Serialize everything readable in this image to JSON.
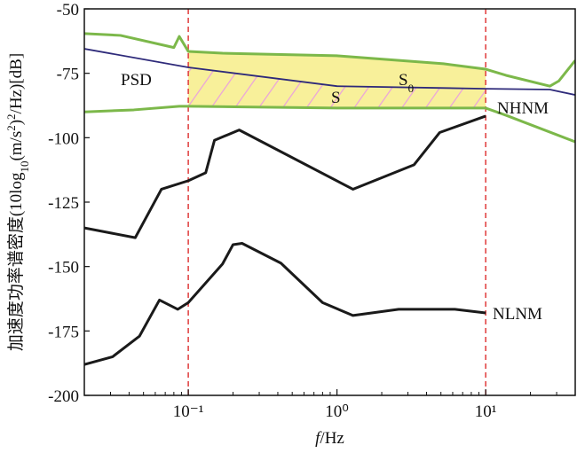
{
  "chart_data": {
    "type": "line",
    "ylabel_parts": [
      {
        "text": "加速度功率谱密度(10log"
      },
      {
        "text": "10",
        "shift": "sub"
      },
      {
        "text": "(m/s"
      },
      {
        "text": "2",
        "shift": "sup"
      },
      {
        "text": ")"
      },
      {
        "text": "2",
        "shift": "sup"
      },
      {
        "text": "/Hz)[dB]"
      }
    ],
    "xlabel_parts": [
      {
        "text": "f",
        "italic": true
      },
      {
        "text": "/Hz"
      }
    ],
    "xlim": [
      0.02,
      40
    ],
    "log_x": true,
    "xticks": [
      {
        "value": 0.1,
        "label": "10⁻¹"
      },
      {
        "value": 1,
        "label": "10⁰"
      },
      {
        "value": 10,
        "label": "10¹"
      }
    ],
    "ylim": [
      -200,
      -50
    ],
    "yticks": [
      -50,
      -75,
      -100,
      -125,
      -150,
      -175,
      -200
    ],
    "vlines": [
      0.1,
      10
    ],
    "vline_color": "#e03a3a",
    "fill_color": "#f8f09a",
    "hatch_color": "#eaa2dc",
    "series": [
      {
        "color": "#7cb84a",
        "x": [
          0.02,
          0.035,
          0.08,
          0.087,
          0.1,
          0.17,
          1,
          5.2,
          10,
          13.7,
          27,
          31,
          40
        ],
        "values": [
          -59.6,
          -60.3,
          -65,
          -60.7,
          -66.5,
          -67.2,
          -68.2,
          -71.3,
          -73.4,
          -75.8,
          -80,
          -78,
          -70
        ]
      },
      {
        "color": "#7cb84a",
        "x": [
          0.02,
          0.043,
          0.087,
          0.1,
          1,
          10,
          13.7,
          40
        ],
        "values": [
          -90,
          -89.2,
          -87.8,
          -87.8,
          -88.5,
          -88.5,
          -91.3,
          -101.6
        ]
      },
      {
        "name": "PSD",
        "color": "#2e2a7a",
        "x": [
          0.02,
          0.1,
          1,
          10,
          27,
          40
        ],
        "values": [
          -65.5,
          -72.7,
          -80,
          -81,
          -81.3,
          -83.4
        ]
      },
      {
        "name": "NHNM",
        "color": "#1a1a1a",
        "x": [
          0.02,
          0.044,
          0.066,
          0.1,
          0.131,
          0.15,
          0.22,
          1.28,
          3.3,
          4.9,
          10
        ],
        "values": [
          -135,
          -138.8,
          -120,
          -116.7,
          -113.6,
          -101,
          -97,
          -120,
          -110.5,
          -98,
          -91.6
        ]
      },
      {
        "name": "NLNM",
        "color": "#1a1a1a",
        "x": [
          0.02,
          0.031,
          0.047,
          0.064,
          0.085,
          0.1,
          0.17,
          0.2,
          0.23,
          0.42,
          0.8,
          1.28,
          2.6,
          3.5,
          6.2,
          10
        ],
        "values": [
          -188,
          -185,
          -177,
          -163,
          -166.6,
          -164,
          -149,
          -141.5,
          -141,
          -148.7,
          -164,
          -169,
          -166.6,
          -166.6,
          -166.6,
          -168
        ]
      }
    ],
    "annotations": [
      {
        "text": "S",
        "subscript": "0"
      },
      {
        "text": "S"
      }
    ]
  }
}
